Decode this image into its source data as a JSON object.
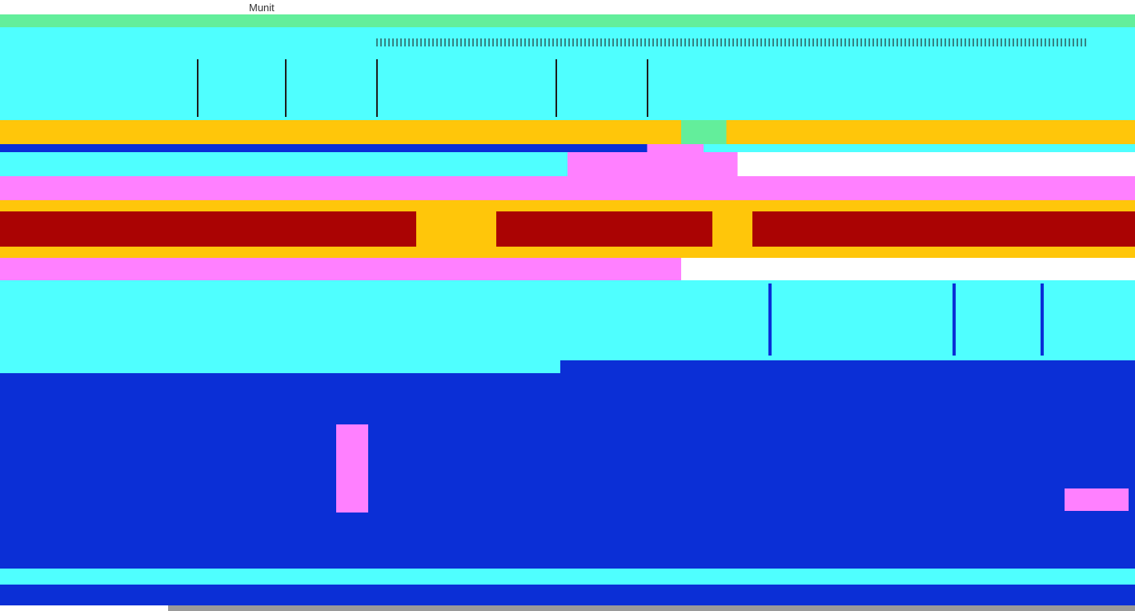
{
  "window": {
    "title": "Munit"
  },
  "colors": {
    "cyan": "#4fffff",
    "green": "#63ee9b",
    "yellow": "#ffc60a",
    "red": "#aa0303",
    "magenta": "#ff80ff",
    "blue": "#0b2fd6",
    "gray": "#9a9a9a"
  }
}
